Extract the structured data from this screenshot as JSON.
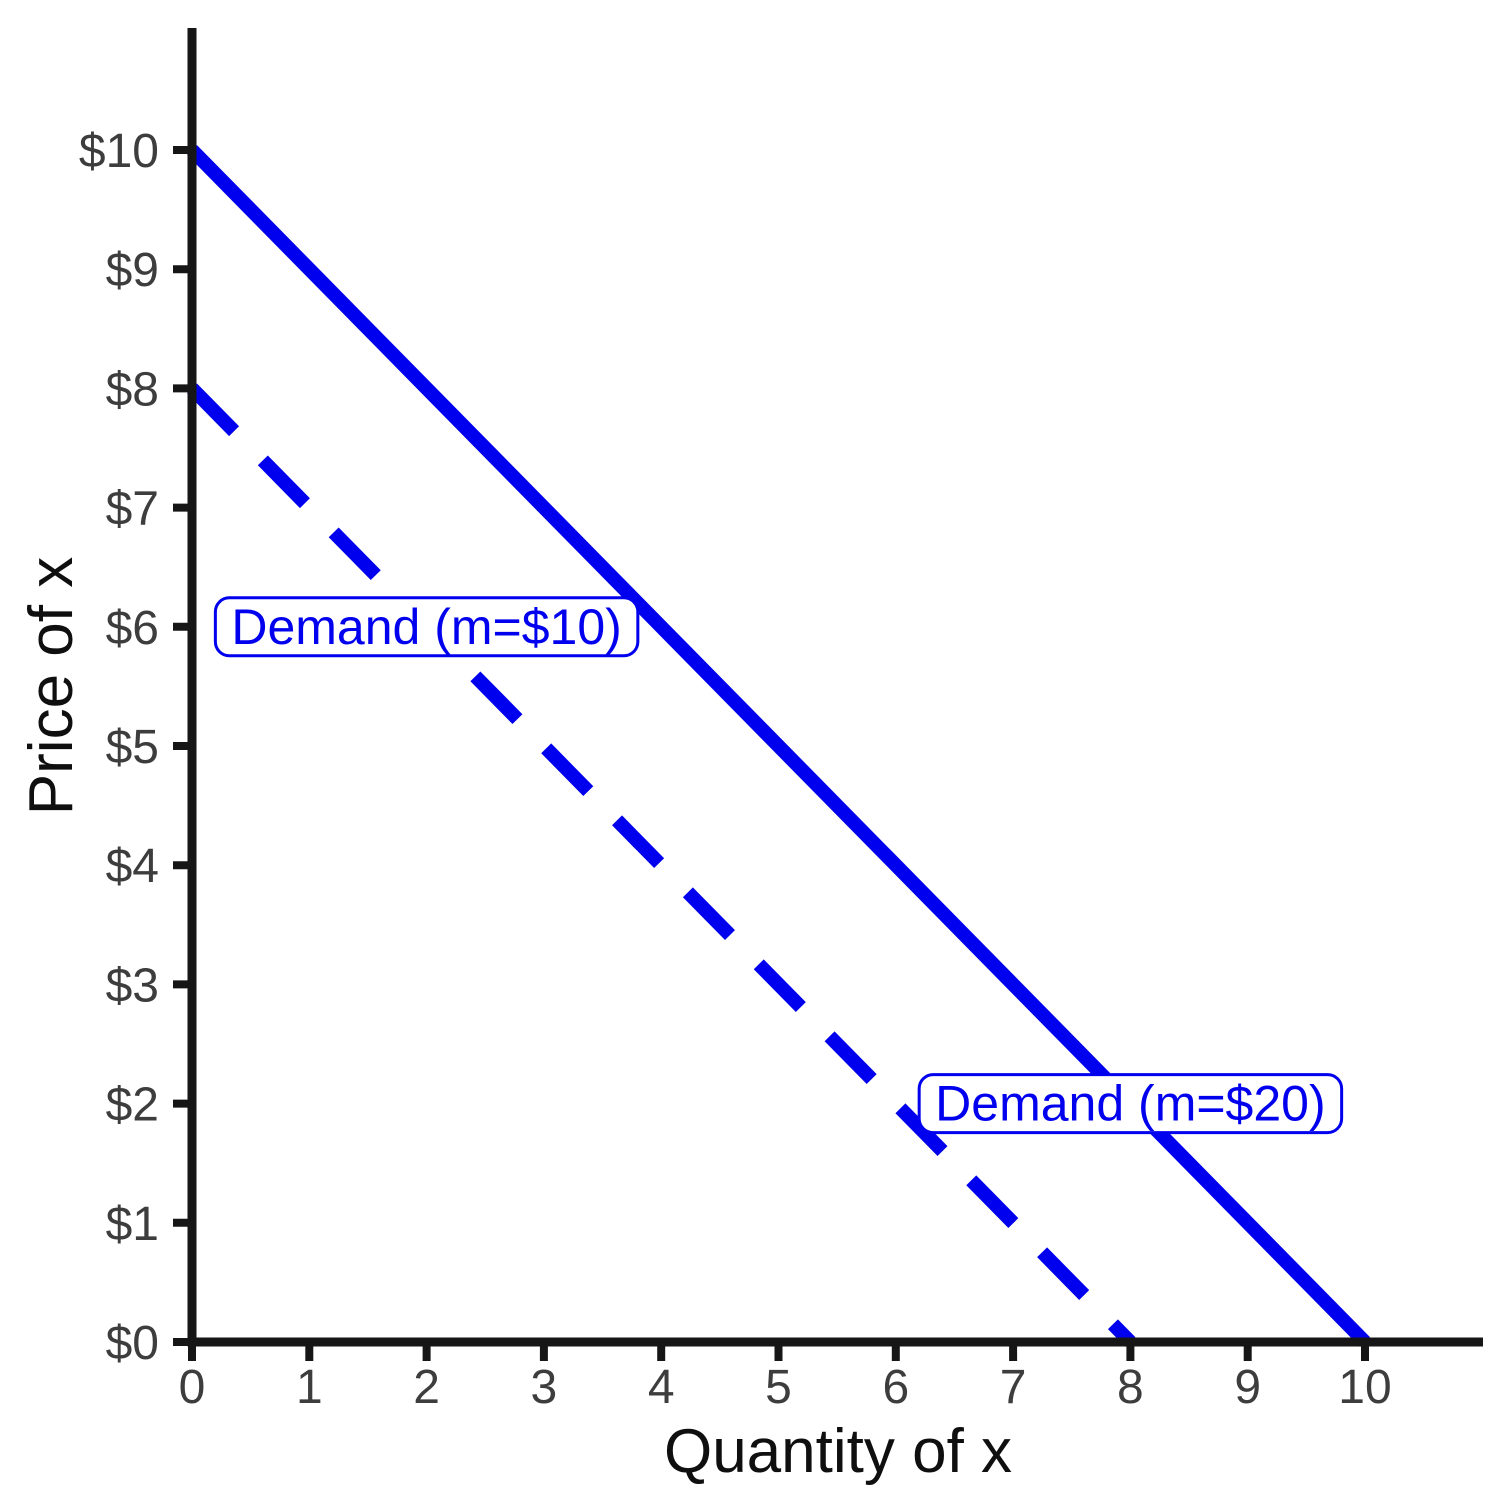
{
  "chart_data": {
    "type": "line",
    "title": "",
    "xlabel": "Quantity of x",
    "ylabel": "Price of x",
    "xlim": [
      0,
      11
    ],
    "ylim": [
      0,
      11
    ],
    "grid": false,
    "colors": {
      "line_color": "#0000EE",
      "axis_color": "#161616",
      "tick_label_color": "#3d3d3d",
      "annotation_bg": "#ffffff"
    },
    "x_ticks": [
      0,
      1,
      2,
      3,
      4,
      5,
      6,
      7,
      8,
      9,
      10
    ],
    "x_tick_labels": [
      "0",
      "1",
      "2",
      "3",
      "4",
      "5",
      "6",
      "7",
      "8",
      "9",
      "10"
    ],
    "y_ticks": [
      0,
      1,
      2,
      3,
      4,
      5,
      6,
      7,
      8,
      9,
      10
    ],
    "y_tick_labels": [
      "$0",
      "$1",
      "$2",
      "$3",
      "$4",
      "$5",
      "$6",
      "$7",
      "$8",
      "$9",
      "$10"
    ],
    "series": [
      {
        "name": "Demand (m=$20)",
        "style": "solid",
        "points": [
          [
            0,
            10
          ],
          [
            10,
            0
          ]
        ]
      },
      {
        "name": "Demand (m=$10)",
        "style": "dashed",
        "points": [
          [
            0,
            8
          ],
          [
            8,
            0
          ]
        ]
      }
    ],
    "annotations": [
      {
        "text": "Demand (m=$10)",
        "x": 2,
        "y": 6
      },
      {
        "text": "Demand (m=$20)",
        "x": 8,
        "y": 2
      }
    ]
  }
}
